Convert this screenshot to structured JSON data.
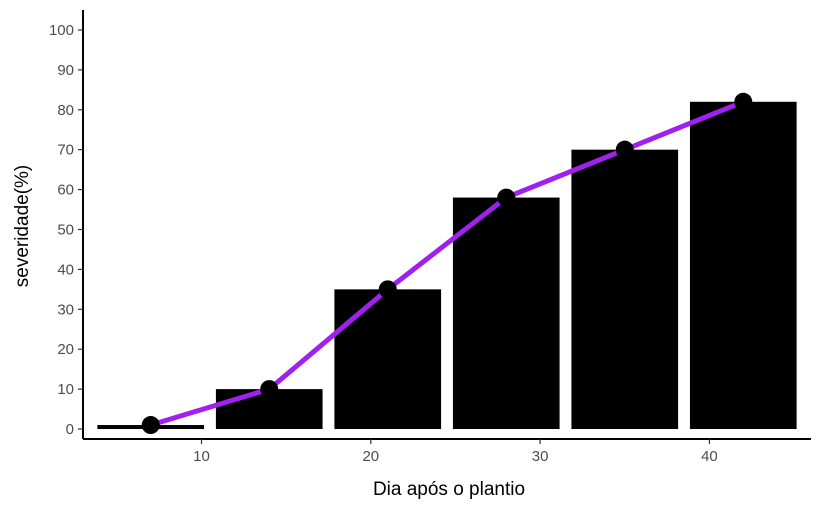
{
  "chart_data": {
    "type": "bar",
    "title": "",
    "xlabel": "Dia após o plantio",
    "ylabel": "severidade(%)",
    "x": [
      7,
      14,
      21,
      28,
      35,
      42
    ],
    "series": [
      {
        "kind": "bar",
        "values": [
          1,
          10,
          35,
          58,
          70,
          82
        ],
        "color": "#000000"
      },
      {
        "kind": "line",
        "values": [
          1,
          10,
          35,
          58,
          70,
          82
        ],
        "color": "#a020f0",
        "marker_color": "#000000"
      }
    ],
    "xlim": [
      3,
      46
    ],
    "ylim": [
      -2.5,
      105
    ],
    "xticks": [
      10,
      20,
      30,
      40
    ],
    "xtick_labels": [
      "10",
      "20",
      "30",
      "40"
    ],
    "yticks": [
      0,
      10,
      20,
      30,
      40,
      50,
      60,
      70,
      80,
      90,
      100
    ],
    "ytick_labels": [
      "0",
      "10",
      "20",
      "30",
      "40",
      "50",
      "60",
      "70",
      "80",
      "90",
      "100"
    ],
    "grid": false,
    "legend": "none"
  }
}
